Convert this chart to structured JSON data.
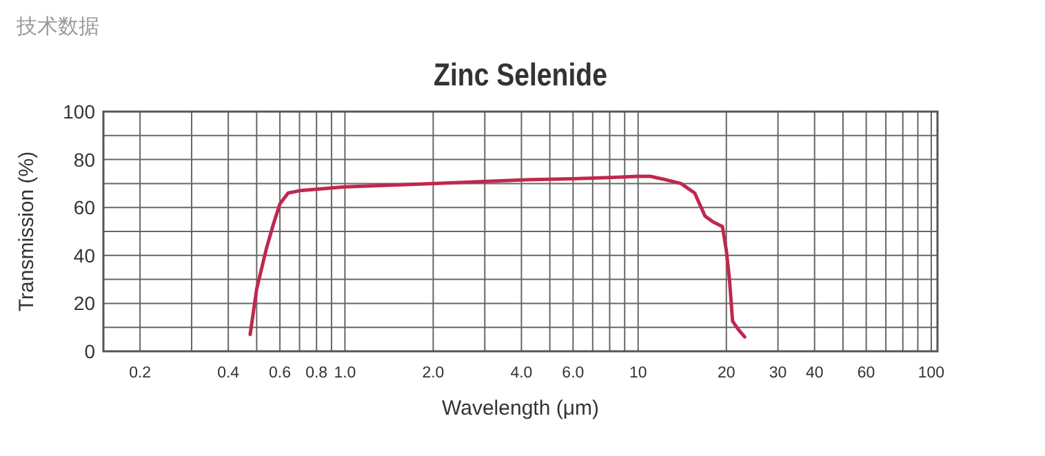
{
  "chart_data": {
    "type": "line",
    "title": "Zinc Selenide",
    "xlabel": "Wavelength (μm)",
    "ylabel": "Transmission (%)",
    "annotations": [
      "技术数据"
    ],
    "log": "x",
    "xlim": [
      0.15,
      105
    ],
    "ylim": [
      0,
      100
    ],
    "xticks": [
      {
        "value": 0.2,
        "label": "0.2"
      },
      {
        "value": 0.3,
        "label": null
      },
      {
        "value": 0.4,
        "label": "0.4"
      },
      {
        "value": 0.5,
        "label": null
      },
      {
        "value": 0.6,
        "label": "0.6"
      },
      {
        "value": 0.7,
        "label": null
      },
      {
        "value": 0.8,
        "label": "0.8"
      },
      {
        "value": 0.9,
        "label": null
      },
      {
        "value": 1,
        "label": "1.0"
      },
      {
        "value": 2,
        "label": "2.0"
      },
      {
        "value": 3,
        "label": null
      },
      {
        "value": 4,
        "label": "4.0"
      },
      {
        "value": 5,
        "label": null
      },
      {
        "value": 6,
        "label": "6.0"
      },
      {
        "value": 7,
        "label": null
      },
      {
        "value": 8,
        "label": null
      },
      {
        "value": 9,
        "label": null
      },
      10,
      20,
      30,
      40,
      {
        "value": 50,
        "label": null
      },
      60,
      {
        "value": 70,
        "label": null
      },
      {
        "value": 80,
        "label": null
      },
      {
        "value": 90,
        "label": null
      },
      100
    ],
    "yticks": [
      0,
      {
        "value": 10,
        "label": null
      },
      20,
      {
        "value": 30,
        "label": null
      },
      40,
      {
        "value": 50,
        "label": null
      },
      60,
      {
        "value": 70,
        "label": null
      },
      80,
      {
        "value": 90,
        "label": null
      },
      100
    ],
    "grid": true,
    "marker": "none",
    "line_style": "solid",
    "series": [
      {
        "color": "#c0284f",
        "x": [
          0.475,
          0.5,
          0.54,
          0.57,
          0.6,
          0.64,
          0.7,
          1,
          2,
          4,
          6,
          8,
          10,
          11,
          12,
          14,
          15.6,
          16.9,
          18,
          19.4,
          20,
          20.5,
          21,
          22,
          23.1
        ],
        "values": [
          7,
          26,
          43,
          53,
          61.5,
          66,
          67,
          68.6,
          70,
          71.5,
          72,
          72.5,
          73,
          73,
          72,
          70,
          66,
          56.5,
          54,
          52,
          42,
          30,
          12.6,
          9,
          6
        ]
      }
    ]
  }
}
